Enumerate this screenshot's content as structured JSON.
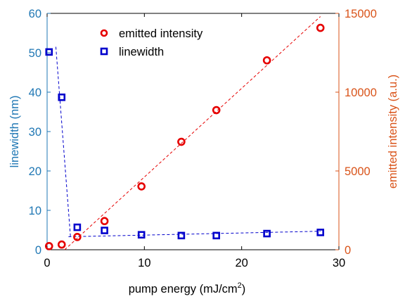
{
  "chart_data": {
    "type": "scatter",
    "xlabel": "pump energy (mJ/cm",
    "xlabel_superscript": "2",
    "xlabel_suffix": ")",
    "ylabel_left": "linewidth (nm)",
    "ylabel_right": "emitted intensity (a.u.)",
    "xlim": [
      0,
      30
    ],
    "ylim_left": [
      0,
      60
    ],
    "ylim_right": [
      0,
      15000
    ],
    "x_ticks": [
      "0",
      "10",
      "20",
      "30"
    ],
    "y_left_ticks": [
      "0",
      "10",
      "20",
      "30",
      "40",
      "50",
      "60"
    ],
    "y_right_ticks": [
      "0",
      "5000",
      "10000",
      "15000"
    ],
    "grid": false,
    "legend_position": "top-left-inside",
    "colors": {
      "intensity": "#e60000",
      "linewidth": "#0000cc",
      "left_axis": "#1f77b4",
      "right_axis": "#d95319",
      "fit_intensity": "#e60000",
      "fit_linewidth": "#0000cc"
    },
    "series": [
      {
        "name": "emitted intensity",
        "axis": "right",
        "marker": "circle",
        "x": [
          0.2,
          1.5,
          3.1,
          5.9,
          9.7,
          13.8,
          17.4,
          22.6,
          28.1
        ],
        "y": [
          230,
          330,
          810,
          1820,
          4020,
          6850,
          8860,
          12020,
          14080
        ]
      },
      {
        "name": "linewidth",
        "axis": "left",
        "marker": "square",
        "x": [
          0.2,
          1.5,
          3.1,
          5.9,
          9.7,
          13.8,
          17.4,
          22.6,
          28.1
        ],
        "y": [
          50.2,
          38.7,
          5.7,
          4.9,
          3.8,
          3.6,
          3.6,
          4.1,
          4.4
        ]
      }
    ],
    "fit_lines": [
      {
        "axis": "right",
        "style": "dashed",
        "x": [
          1.8,
          28.1
        ],
        "y": [
          0,
          14800
        ]
      },
      {
        "axis": "left",
        "style": "dashed",
        "x": [
          0.9,
          2.4
        ],
        "y": [
          51.5,
          3.4
        ]
      },
      {
        "axis": "left",
        "style": "dashed",
        "x": [
          2.2,
          28.1
        ],
        "y": [
          3.3,
          4.7
        ]
      }
    ]
  }
}
